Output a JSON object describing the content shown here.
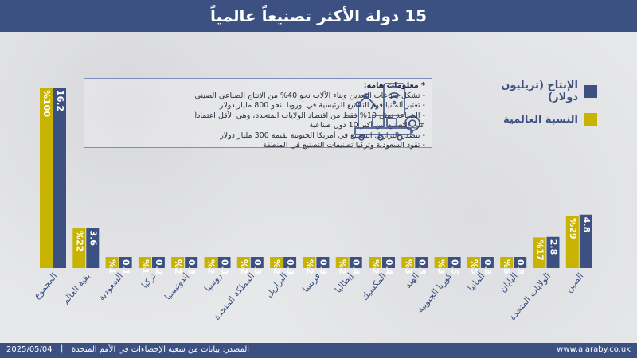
{
  "title": "15 دولة الأكثر تصنيعاً عالمياً",
  "colors": {
    "production": "#3c5182",
    "share": "#c8b400",
    "header": "#3c5182"
  },
  "legend": [
    {
      "label": "الإنتاج (تريليون دولار)",
      "color": "#3c5182"
    },
    {
      "label": "النسبة العالمية",
      "color": "#c8b400"
    }
  ],
  "notes": {
    "title": "* معلومات هامة:",
    "lines": [
      "- تشكل صناعات التعدين وبناء الآلات نحو 40% من الإنتاج الصناعي الصيني",
      "- تعتبر ألمانيا قوة التصنيع الرئيسية في أوروبا بنحو 800 مليار دولار",
      "- الصناعة تمثل 10% فقط من اقتصاد الولايات المتحدة، وهي الأقل اعتماداً",
      "على التصنيع بين أكبر 10 دول صناعية",
      "- تتصدر البرازيل التصنيع في أمريكا الجنوبية بقيمة 300 مليار دولار",
      "- تقود السعودية وتركيا تصنيفات التصنيع في المنطقة"
    ],
    "icon": "factory-automation-icon"
  },
  "chart_data": {
    "type": "bar",
    "categories": [
      "المجموع",
      "بقية العالم",
      "السعودية",
      "تركيا",
      "إندونيسيا",
      "روسيا",
      "المملكة المتحدة",
      "البرازيل",
      "فرنسا",
      "إيطاليا",
      "المكسيك",
      "الهند",
      "كوريا الجنوبية",
      "ألمانيا",
      "اليابان",
      "الولايات المتحدة",
      "الصين"
    ],
    "series": [
      {
        "name": "النسبة العالمية",
        "values": [
          100,
          22,
          1,
          1,
          2,
          2,
          2,
          2,
          2,
          2,
          2,
          3,
          3,
          5,
          5,
          17,
          29
        ],
        "labels": [
          "%100",
          "%22",
          "%1",
          "%1",
          "%2",
          "%2",
          "%2",
          "%2",
          "%2",
          "%2",
          "%2",
          "%3",
          "%3",
          "%5",
          "%5",
          "%17",
          "%29"
        ]
      },
      {
        "name": "الإنتاج (تريليون دولار)",
        "values": [
          16.2,
          3.6,
          0.1,
          0.2,
          0.3,
          0.3,
          0.3,
          0.3,
          0.3,
          0.4,
          0.4,
          0.5,
          0.5,
          0.8,
          0.8,
          2.8,
          4.8
        ],
        "labels": [
          "16.2",
          "3.6",
          "0.1",
          "0.2",
          "0.3",
          "0.3",
          "0.3",
          "0.3",
          "0.3",
          "0.4",
          "0.4",
          "0.5",
          "0.5",
          "0.8",
          "0.8",
          "2.8",
          "4.8"
        ]
      }
    ]
  },
  "footer": {
    "date": "2025/05/04",
    "separator": "|",
    "source": "المصدر: بيانات من شعبة الإحصاءات في الأمم المتحدة",
    "site": "www.alaraby.co.uk"
  }
}
